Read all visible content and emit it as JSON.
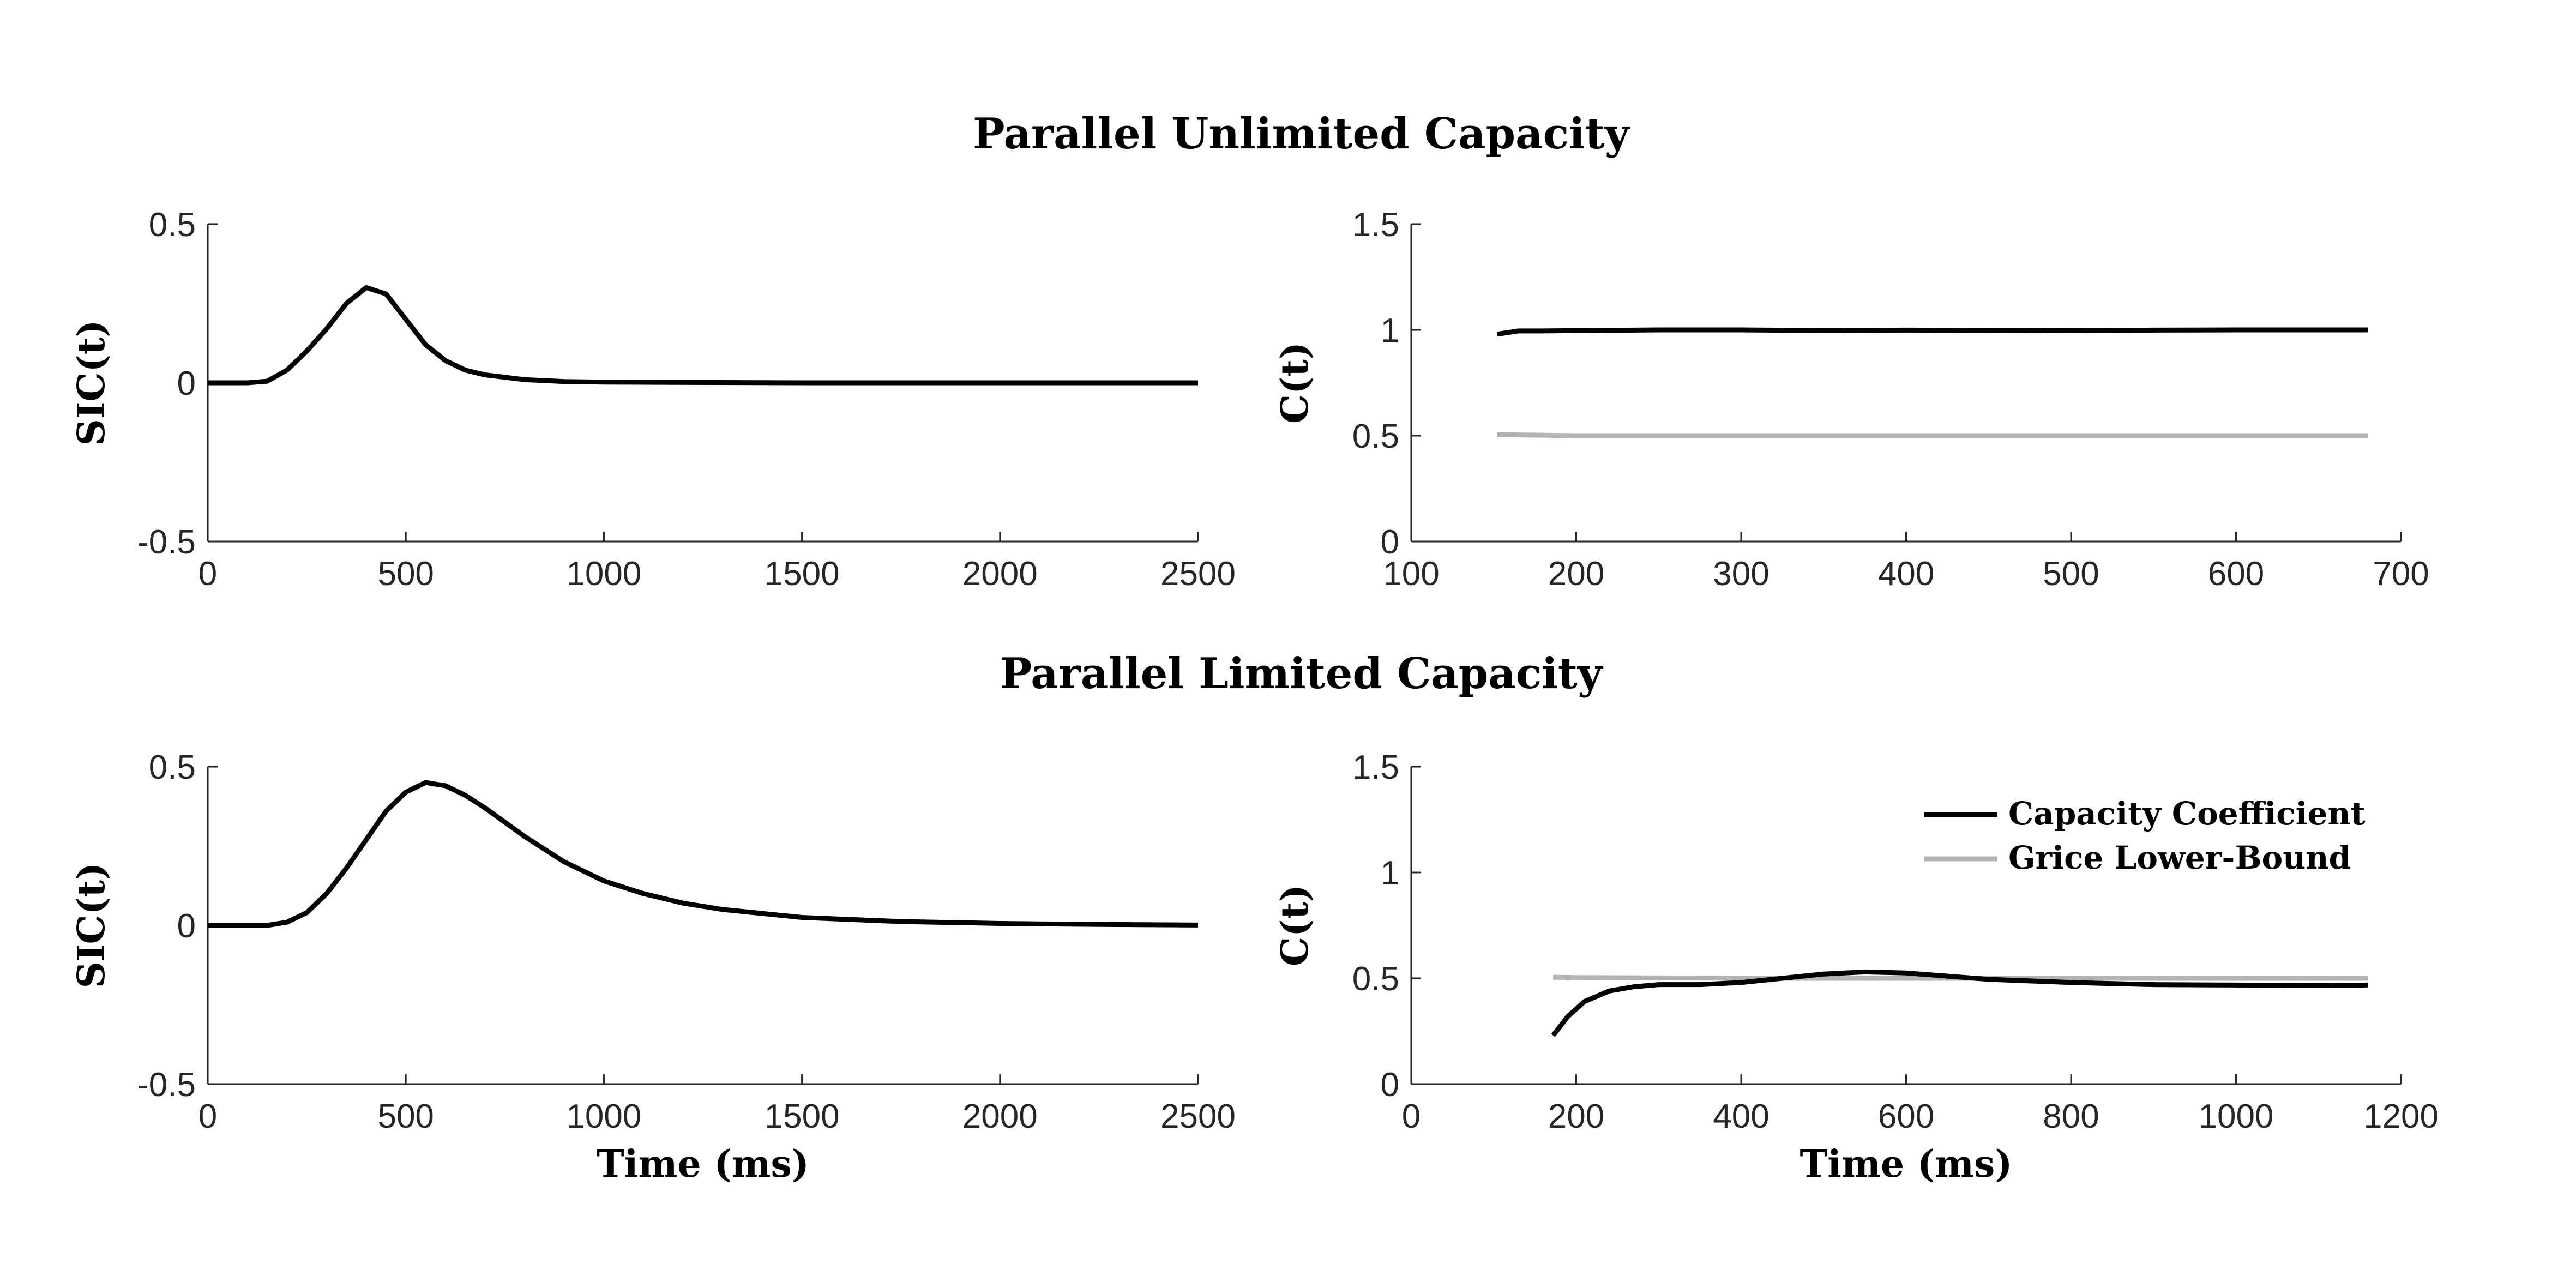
{
  "figure": {
    "titles": [
      "Parallel Unlimited Capacity",
      "Parallel Limited Capacity"
    ]
  },
  "chart_data": [
    {
      "type": "line",
      "panel": "top-left",
      "title": "Parallel Unlimited Capacity",
      "xlabel": "",
      "ylabel": "SIC(t)",
      "xlim": [
        0,
        2500
      ],
      "ylim": [
        -0.5,
        0.5
      ],
      "xticks": [
        0,
        500,
        1000,
        1500,
        2000,
        2500
      ],
      "yticks": [
        -0.5,
        0,
        0.5
      ],
      "grid": false,
      "series": [
        {
          "color": "#000000",
          "x": [
            0,
            100,
            150,
            200,
            250,
            300,
            350,
            400,
            450,
            500,
            550,
            600,
            650,
            700,
            800,
            900,
            1000,
            1500,
            2000,
            2500
          ],
          "y": [
            0,
            0,
            0.005,
            0.04,
            0.1,
            0.17,
            0.25,
            0.3,
            0.28,
            0.2,
            0.12,
            0.07,
            0.04,
            0.025,
            0.01,
            0.004,
            0.002,
            0,
            0,
            0
          ]
        }
      ]
    },
    {
      "type": "line",
      "panel": "top-right",
      "title": "",
      "xlabel": "",
      "ylabel": "C(t)",
      "xlim": [
        100,
        700
      ],
      "ylim": [
        0,
        1.5
      ],
      "xticks": [
        100,
        200,
        300,
        400,
        500,
        600,
        700
      ],
      "yticks": [
        0,
        0.5,
        1,
        1.5
      ],
      "grid": false,
      "series": [
        {
          "name": "Capacity Coefficient",
          "color": "#000000",
          "x": [
            152,
            165,
            180,
            200,
            250,
            300,
            350,
            400,
            450,
            500,
            550,
            600,
            650,
            680
          ],
          "y": [
            0.98,
            0.995,
            0.995,
            0.997,
            1.0,
            1.0,
            0.997,
            0.999,
            0.998,
            0.997,
            0.999,
            1.0,
            1.0,
            1.0
          ]
        },
        {
          "name": "Grice Lower-Bound",
          "color": "#b3b3b3",
          "x": [
            152,
            200,
            300,
            400,
            500,
            600,
            680
          ],
          "y": [
            0.505,
            0.5,
            0.5,
            0.5,
            0.5,
            0.5,
            0.5
          ]
        }
      ]
    },
    {
      "type": "line",
      "panel": "bottom-left",
      "title": "Parallel Limited Capacity",
      "xlabel": "Time (ms)",
      "ylabel": "SIC(t)",
      "xlim": [
        0,
        2500
      ],
      "ylim": [
        -0.5,
        0.5
      ],
      "xticks": [
        0,
        500,
        1000,
        1500,
        2000,
        2500
      ],
      "yticks": [
        -0.5,
        0,
        0.5
      ],
      "grid": false,
      "series": [
        {
          "color": "#000000",
          "x": [
            0,
            150,
            200,
            250,
            300,
            350,
            400,
            450,
            500,
            550,
            600,
            650,
            700,
            800,
            900,
            1000,
            1100,
            1200,
            1300,
            1500,
            1750,
            2000,
            2250,
            2500
          ],
          "y": [
            0,
            0,
            0.01,
            0.04,
            0.1,
            0.18,
            0.27,
            0.36,
            0.42,
            0.45,
            0.44,
            0.41,
            0.37,
            0.28,
            0.2,
            0.14,
            0.1,
            0.07,
            0.05,
            0.025,
            0.012,
            0.006,
            0.003,
            0.001
          ]
        }
      ]
    },
    {
      "type": "line",
      "panel": "bottom-right",
      "title": "",
      "xlabel": "Time (ms)",
      "ylabel": "C(t)",
      "xlim": [
        0,
        1200
      ],
      "ylim": [
        0,
        1.5
      ],
      "xticks": [
        0,
        200,
        400,
        600,
        800,
        1000,
        1200
      ],
      "yticks": [
        0,
        0.5,
        1,
        1.5
      ],
      "grid": false,
      "legend": "top-right",
      "series": [
        {
          "name": "Capacity Coefficient",
          "color": "#000000",
          "x": [
            172,
            190,
            210,
            240,
            270,
            300,
            350,
            400,
            450,
            500,
            550,
            600,
            650,
            700,
            800,
            900,
            1000,
            1100,
            1160
          ],
          "y": [
            0.23,
            0.32,
            0.39,
            0.44,
            0.46,
            0.47,
            0.47,
            0.48,
            0.5,
            0.52,
            0.53,
            0.525,
            0.51,
            0.495,
            0.48,
            0.47,
            0.468,
            0.466,
            0.468
          ]
        },
        {
          "name": "Grice Lower-Bound",
          "color": "#b3b3b3",
          "x": [
            172,
            200,
            400,
            600,
            800,
            1000,
            1160
          ],
          "y": [
            0.505,
            0.503,
            0.5,
            0.5,
            0.5,
            0.5,
            0.5
          ]
        }
      ]
    }
  ]
}
